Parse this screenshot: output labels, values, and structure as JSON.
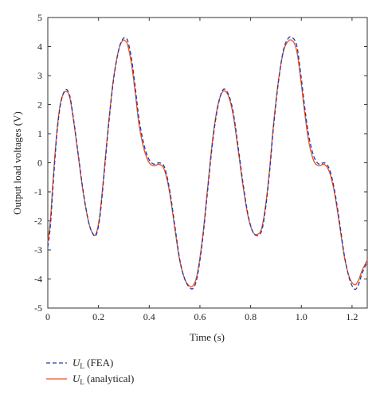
{
  "chart_data": {
    "type": "line",
    "title": "",
    "xlabel": "Time (s)",
    "ylabel": "Output load voltages (V)",
    "xlim": [
      0,
      1.26
    ],
    "ylim": [
      -5,
      5
    ],
    "x_ticks": [
      "0",
      "0.2",
      "0.4",
      "0.6",
      "0.8",
      "1.0",
      "1.2"
    ],
    "x_tick_values": [
      0,
      0.2,
      0.4,
      0.6,
      0.8,
      1.0,
      1.2
    ],
    "y_ticks": [
      "-5",
      "-4",
      "-3",
      "-2",
      "-1",
      "0",
      "1",
      "2",
      "3",
      "4",
      "5"
    ],
    "y_tick_values": [
      -5,
      -4,
      -3,
      -2,
      -1,
      0,
      1,
      2,
      3,
      4,
      5
    ],
    "grid": false,
    "legend_position": "bottom-left-outside",
    "series": [
      {
        "name": "U_L (FEA)",
        "legend_main": "U",
        "legend_sub": "L",
        "legend_rest": " (FEA)",
        "color": "#2b3a99",
        "style": "dashed",
        "x": [
          0,
          0.01,
          0.02,
          0.035,
          0.05,
          0.068,
          0.085,
          0.1,
          0.12,
          0.14,
          0.16,
          0.175,
          0.19,
          0.205,
          0.22,
          0.24,
          0.26,
          0.28,
          0.295,
          0.305,
          0.315,
          0.33,
          0.345,
          0.36,
          0.38,
          0.4,
          0.42,
          0.44,
          0.46,
          0.48,
          0.5,
          0.52,
          0.54,
          0.56,
          0.575,
          0.59,
          0.61,
          0.63,
          0.65,
          0.67,
          0.69,
          0.71,
          0.73,
          0.75,
          0.77,
          0.79,
          0.81,
          0.83,
          0.845,
          0.86,
          0.875,
          0.89,
          0.91,
          0.93,
          0.95,
          0.965,
          0.975,
          0.985,
          1.0,
          1.015,
          1.03,
          1.05,
          1.07,
          1.09,
          1.11,
          1.13,
          1.15,
          1.17,
          1.19,
          1.21,
          1.225,
          1.24,
          1.26
        ],
        "values": [
          -2.9,
          -2.2,
          -0.9,
          0.9,
          2.0,
          2.5,
          2.35,
          1.6,
          0.3,
          -1.0,
          -2.0,
          -2.4,
          -2.5,
          -1.9,
          -0.6,
          1.3,
          2.9,
          3.9,
          4.25,
          4.3,
          4.2,
          3.6,
          2.6,
          1.5,
          0.6,
          0.1,
          -0.05,
          0.0,
          -0.15,
          -0.9,
          -2.1,
          -3.3,
          -4.0,
          -4.3,
          -4.3,
          -3.9,
          -2.7,
          -1.0,
          0.7,
          1.9,
          2.5,
          2.4,
          1.8,
          0.6,
          -0.7,
          -1.8,
          -2.4,
          -2.5,
          -2.3,
          -1.5,
          -0.3,
          1.2,
          2.8,
          3.9,
          4.3,
          4.3,
          4.2,
          3.9,
          2.9,
          1.8,
          0.9,
          0.2,
          -0.05,
          0.0,
          -0.2,
          -0.9,
          -2.0,
          -3.2,
          -4.0,
          -4.35,
          -4.2,
          -3.8,
          -3.4
        ]
      },
      {
        "name": "U_L (analytical)",
        "legend_main": "U",
        "legend_sub": "L",
        "legend_rest": " (analytical)",
        "color": "#e2522e",
        "style": "solid",
        "x": [
          0,
          0.01,
          0.02,
          0.035,
          0.05,
          0.068,
          0.085,
          0.1,
          0.12,
          0.14,
          0.16,
          0.175,
          0.19,
          0.205,
          0.22,
          0.24,
          0.26,
          0.28,
          0.295,
          0.305,
          0.315,
          0.33,
          0.345,
          0.36,
          0.38,
          0.4,
          0.42,
          0.44,
          0.46,
          0.48,
          0.5,
          0.52,
          0.54,
          0.56,
          0.575,
          0.59,
          0.61,
          0.63,
          0.65,
          0.67,
          0.69,
          0.71,
          0.73,
          0.75,
          0.77,
          0.79,
          0.81,
          0.83,
          0.845,
          0.86,
          0.875,
          0.89,
          0.91,
          0.93,
          0.95,
          0.965,
          0.975,
          0.985,
          1.0,
          1.015,
          1.03,
          1.05,
          1.07,
          1.09,
          1.11,
          1.13,
          1.15,
          1.17,
          1.19,
          1.21,
          1.225,
          1.24,
          1.26
        ],
        "values": [
          -2.7,
          -2.0,
          -0.7,
          1.0,
          2.05,
          2.45,
          2.3,
          1.55,
          0.25,
          -1.05,
          -2.0,
          -2.4,
          -2.45,
          -1.8,
          -0.5,
          1.4,
          2.95,
          3.9,
          4.2,
          4.2,
          4.05,
          3.4,
          2.4,
          1.3,
          0.45,
          0.0,
          -0.1,
          -0.05,
          -0.25,
          -1.0,
          -2.2,
          -3.35,
          -4.0,
          -4.25,
          -4.2,
          -3.8,
          -2.6,
          -0.9,
          0.8,
          1.95,
          2.45,
          2.35,
          1.7,
          0.5,
          -0.8,
          -1.85,
          -2.4,
          -2.45,
          -2.2,
          -1.4,
          -0.2,
          1.3,
          2.85,
          3.85,
          4.2,
          4.2,
          4.05,
          3.7,
          2.7,
          1.6,
          0.7,
          0.05,
          -0.1,
          -0.05,
          -0.3,
          -1.0,
          -2.1,
          -3.25,
          -3.95,
          -4.2,
          -4.05,
          -3.7,
          -3.35
        ]
      }
    ]
  }
}
